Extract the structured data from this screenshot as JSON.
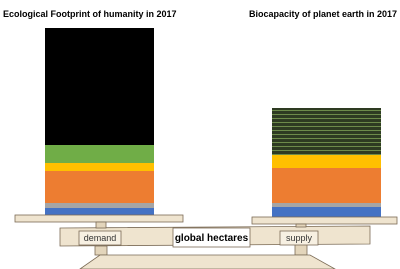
{
  "left_title": "Ecological Footprint of humanity in 2017",
  "right_title": "Biocapacity of planet earth in 2017",
  "scale": {
    "left_label": "demand",
    "center_label": "global hectares",
    "right_label": "supply"
  }
}
